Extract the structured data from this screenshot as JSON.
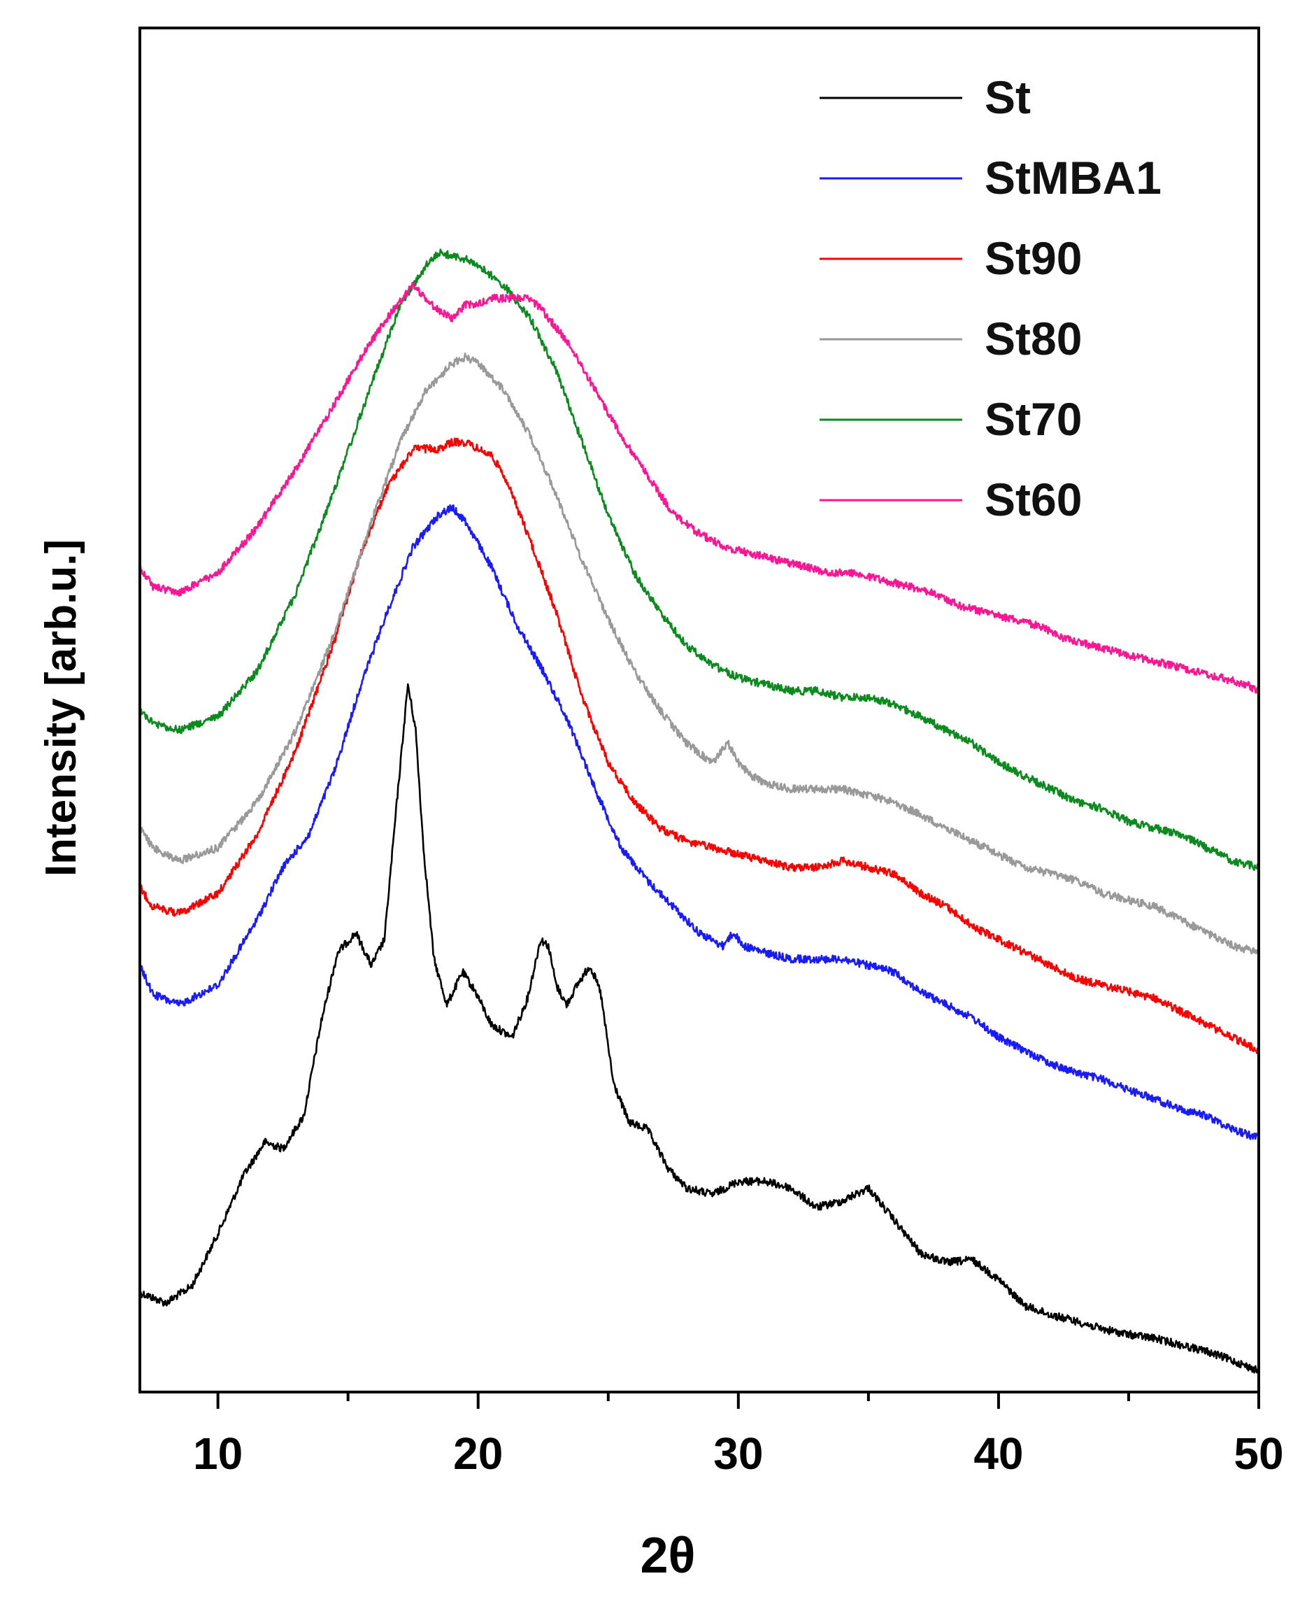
{
  "chart_data": {
    "type": "line",
    "title": "",
    "xlabel": "2θ",
    "ylabel": "Intensity [arb.u.]",
    "xlim": [
      7,
      50
    ],
    "ylim": [
      0,
      100
    ],
    "y_ticks_shown": false,
    "x_major_ticks": [
      10,
      20,
      30,
      40,
      50
    ],
    "x_tick_labels": [
      "10",
      "20",
      "30",
      "40",
      "50"
    ],
    "x_minor_ticks": [
      15,
      25,
      35,
      45
    ],
    "legend": {
      "position": "top-right",
      "entries": [
        "St",
        "StMBA1",
        "St90",
        "St80",
        "St70",
        "St60"
      ]
    },
    "series": [
      {
        "name": "St",
        "color": "#000000",
        "x": [
          7.0,
          8.0,
          9.0,
          10.0,
          11.0,
          11.8,
          12.5,
          13.3,
          14.0,
          14.6,
          15.3,
          15.9,
          16.4,
          16.9,
          17.3,
          17.6,
          17.9,
          18.3,
          18.8,
          19.4,
          19.9,
          20.5,
          21.3,
          21.9,
          22.4,
          22.7,
          23.0,
          23.4,
          23.8,
          24.3,
          24.7,
          25.2,
          25.8,
          26.5,
          27.3,
          28.0,
          29.0,
          30.0,
          31.0,
          32.0,
          33.0,
          34.0,
          35.0,
          36.0,
          37.0,
          38.0,
          39.0,
          40.0,
          41.0,
          42.0,
          43.0,
          44.0,
          45.0,
          46.0,
          47.0,
          48.0,
          49.0,
          50.0
        ],
        "y": [
          6.0,
          5.2,
          6.5,
          10.5,
          15.0,
          17.5,
          17.0,
          19.5,
          27.0,
          32.0,
          33.5,
          31.0,
          33.0,
          44.0,
          52.5,
          49.0,
          40.0,
          31.5,
          28.0,
          30.5,
          29.0,
          26.5,
          25.5,
          28.5,
          33.0,
          32.5,
          29.5,
          28.0,
          29.5,
          31.0,
          29.0,
          22.0,
          19.0,
          18.5,
          15.5,
          14.0,
          13.5,
          14.5,
          14.5,
          14.0,
          12.5,
          13.0,
          14.0,
          11.5,
          9.0,
          8.3,
          8.5,
          7.0,
          5.0,
          4.3,
          3.8,
          3.2,
          2.8,
          2.5,
          2.0,
          1.5,
          0.8,
          0.0
        ]
      },
      {
        "name": "StMBA1",
        "color": "#1a1aff",
        "x": [
          7.0,
          7.5,
          8.5,
          10.0,
          11.5,
          12.5,
          13.5,
          14.5,
          15.5,
          16.5,
          17.5,
          18.5,
          19.0,
          19.5,
          20.5,
          21.5,
          22.5,
          23.5,
          24.5,
          25.5,
          26.5,
          27.5,
          28.5,
          29.4,
          29.8,
          30.2,
          31.0,
          32.0,
          33.0,
          34.0,
          35.0,
          36.0,
          37.0,
          38.0,
          39.0,
          40.0,
          41.0,
          42.0,
          43.0,
          44.0,
          45.0,
          46.0,
          47.0,
          48.0,
          49.0,
          50.0
        ],
        "y": [
          31.0,
          28.8,
          28.0,
          29.5,
          34.5,
          38.5,
          41.0,
          46.0,
          52.5,
          58.0,
          63.0,
          65.5,
          66.0,
          65.0,
          61.5,
          57.0,
          53.5,
          49.5,
          44.5,
          40.0,
          37.5,
          35.5,
          33.5,
          32.5,
          33.5,
          32.5,
          32.0,
          31.5,
          31.5,
          31.5,
          31.0,
          30.5,
          29.0,
          28.0,
          27.0,
          25.5,
          24.5,
          23.5,
          22.8,
          22.3,
          21.5,
          20.8,
          20.0,
          19.5,
          18.5,
          17.8
        ]
      },
      {
        "name": "St90",
        "color": "#ff0000",
        "x": [
          7.0,
          7.5,
          8.5,
          10.0,
          11.5,
          13.0,
          14.5,
          15.5,
          16.5,
          17.5,
          18.5,
          19.0,
          19.5,
          20.0,
          20.5,
          21.0,
          22.0,
          23.0,
          24.0,
          25.0,
          26.0,
          27.0,
          28.0,
          29.0,
          30.0,
          31.0,
          32.0,
          33.0,
          34.0,
          35.0,
          36.0,
          37.0,
          38.0,
          39.0,
          40.0,
          41.0,
          42.0,
          43.0,
          44.0,
          45.0,
          46.0,
          47.0,
          48.0,
          49.0,
          50.0
        ],
        "y": [
          37.0,
          35.5,
          35.0,
          36.5,
          41.0,
          47.5,
          56.0,
          62.5,
          67.5,
          70.5,
          70.5,
          71.0,
          71.0,
          70.5,
          70.0,
          68.5,
          63.5,
          58.0,
          51.5,
          46.5,
          43.5,
          41.5,
          40.5,
          40.0,
          39.5,
          39.0,
          38.5,
          38.5,
          39.0,
          38.5,
          38.0,
          36.5,
          35.5,
          34.0,
          33.0,
          32.0,
          31.0,
          30.0,
          29.5,
          29.0,
          28.5,
          27.5,
          26.5,
          25.5,
          24.5
        ]
      },
      {
        "name": "St80",
        "color": "#999999",
        "x": [
          7.0,
          7.5,
          8.5,
          10.0,
          11.5,
          13.0,
          14.5,
          16.0,
          17.0,
          18.0,
          19.0,
          19.5,
          20.0,
          21.0,
          22.0,
          23.0,
          24.0,
          25.0,
          26.0,
          27.0,
          28.0,
          29.0,
          29.6,
          30.0,
          30.5,
          31.0,
          32.0,
          33.0,
          34.0,
          35.0,
          36.0,
          37.0,
          38.0,
          39.0,
          40.0,
          41.0,
          42.0,
          43.0,
          44.0,
          45.0,
          46.0,
          47.0,
          48.0,
          49.0,
          50.0
        ],
        "y": [
          41.5,
          40.0,
          39.0,
          40.0,
          43.5,
          49.0,
          56.5,
          65.5,
          71.0,
          75.0,
          77.0,
          77.5,
          77.0,
          75.0,
          71.5,
          67.0,
          62.0,
          57.5,
          53.5,
          50.5,
          48.0,
          46.5,
          48.0,
          46.5,
          45.5,
          45.0,
          44.5,
          44.5,
          44.5,
          44.0,
          43.5,
          42.5,
          41.5,
          40.5,
          39.5,
          38.5,
          38.0,
          37.5,
          36.5,
          36.0,
          35.5,
          34.5,
          33.5,
          32.5,
          32.0
        ]
      },
      {
        "name": "St70",
        "color": "#0b8a1e",
        "x": [
          7.0,
          7.5,
          8.5,
          10.0,
          11.5,
          13.0,
          14.5,
          16.0,
          17.0,
          18.0,
          18.5,
          19.5,
          20.0,
          21.0,
          22.0,
          23.0,
          24.0,
          25.0,
          26.0,
          27.0,
          28.0,
          29.0,
          30.0,
          31.0,
          32.0,
          33.0,
          34.0,
          35.0,
          36.0,
          37.0,
          38.0,
          39.0,
          40.0,
          41.0,
          42.0,
          43.0,
          44.0,
          45.0,
          46.0,
          47.0,
          48.0,
          49.0,
          50.0
        ],
        "y": [
          50.5,
          49.5,
          49.0,
          50.0,
          53.5,
          59.5,
          67.5,
          76.0,
          81.5,
          84.5,
          85.5,
          85.0,
          84.5,
          83.0,
          80.5,
          76.5,
          71.0,
          65.5,
          61.0,
          58.0,
          55.5,
          54.0,
          53.0,
          52.5,
          52.0,
          52.0,
          51.5,
          51.5,
          51.0,
          50.0,
          49.0,
          48.0,
          46.5,
          45.5,
          44.5,
          43.5,
          43.0,
          42.0,
          41.5,
          41.0,
          40.0,
          39.0,
          38.5
        ]
      },
      {
        "name": "St60",
        "color": "#ff1493",
        "x": [
          7.0,
          7.5,
          8.5,
          10.0,
          11.5,
          13.0,
          14.5,
          15.5,
          16.5,
          17.5,
          18.0,
          18.5,
          19.0,
          19.5,
          20.0,
          20.5,
          21.0,
          22.0,
          22.5,
          23.5,
          24.5,
          25.5,
          26.5,
          27.5,
          28.5,
          29.5,
          30.5,
          31.5,
          32.5,
          33.5,
          34.5,
          35.5,
          36.5,
          37.5,
          38.5,
          39.5,
          40.5,
          41.5,
          42.5,
          43.5,
          44.5,
          45.5,
          46.5,
          47.5,
          48.5,
          49.5,
          50.0
        ],
        "y": [
          61.5,
          60.0,
          59.5,
          61.0,
          64.5,
          69.0,
          74.0,
          77.5,
          80.5,
          83.0,
          82.0,
          81.0,
          80.5,
          81.5,
          81.5,
          82.0,
          82.0,
          82.0,
          81.0,
          78.5,
          75.0,
          71.5,
          68.5,
          65.5,
          64.0,
          63.0,
          62.5,
          62.0,
          61.5,
          61.0,
          61.0,
          60.5,
          60.0,
          59.5,
          58.5,
          58.0,
          57.5,
          57.0,
          56.0,
          55.5,
          55.0,
          54.5,
          54.0,
          53.5,
          53.0,
          52.5,
          52.0
        ]
      }
    ]
  }
}
